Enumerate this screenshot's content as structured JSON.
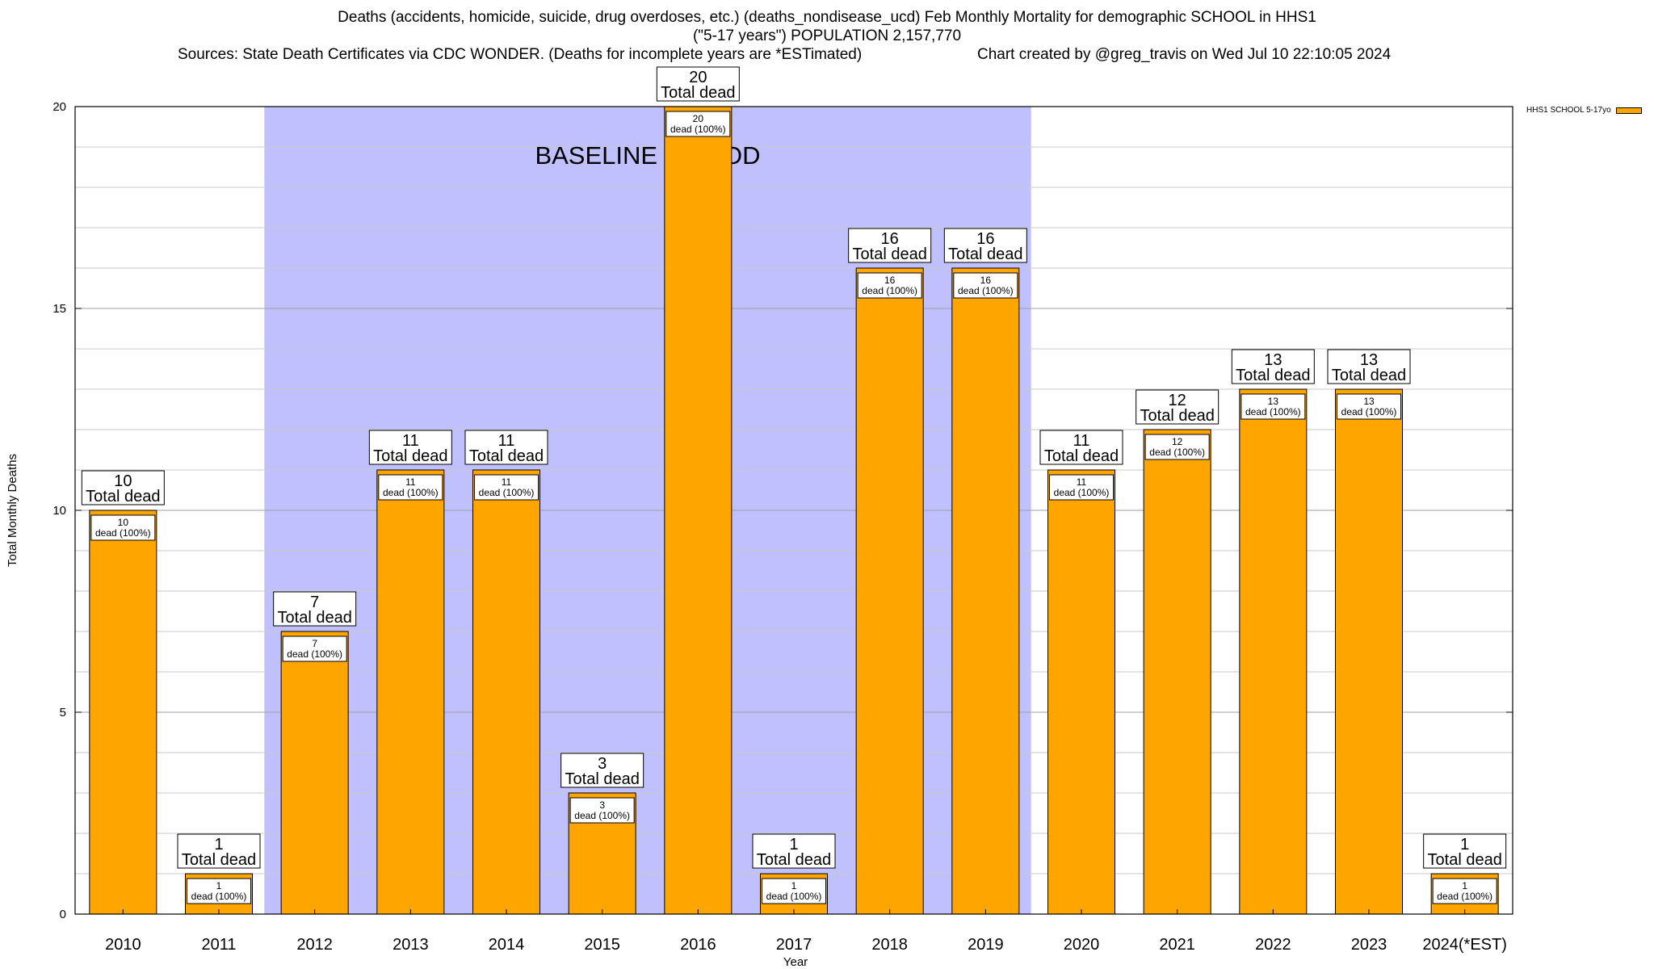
{
  "chart_data": {
    "type": "bar",
    "title_line1": "Deaths (accidents, homicide, suicide, drug overdoses, etc.) (deaths_nondisease_ucd) Feb Monthly Mortality for demographic SCHOOL in HHS1",
    "title_line2": "(\"5-17 years\") POPULATION 2,157,770",
    "sources": "Sources: State Death Certificates via CDC WONDER. (Deaths for incomplete years are *ESTimated)",
    "credit": "Chart created by @greg_travis on Wed Jul 10 22:10:05 2024",
    "xlabel": "Year",
    "ylabel": "Total Monthly Deaths",
    "ylim": [
      0,
      20
    ],
    "yticks": [
      0,
      5,
      10,
      15,
      20
    ],
    "baseline_label": "BASELINE PERIOD",
    "baseline_range": [
      "2012",
      "2019"
    ],
    "categories": [
      "2010",
      "2011",
      "2012",
      "2013",
      "2014",
      "2015",
      "2016",
      "2017",
      "2018",
      "2019",
      "2020",
      "2021",
      "2022",
      "2023",
      "2024(*EST)"
    ],
    "series": [
      {
        "name": "HHS1 SCHOOL 5-17yo",
        "color": "#ffa500",
        "values": [
          10,
          1,
          7,
          11,
          11,
          3,
          20,
          1,
          16,
          16,
          11,
          12,
          13,
          13,
          1
        ]
      }
    ],
    "total_label": "Total dead",
    "inner_label": "dead (100%)",
    "baseline_color": "#c0c0ff"
  }
}
